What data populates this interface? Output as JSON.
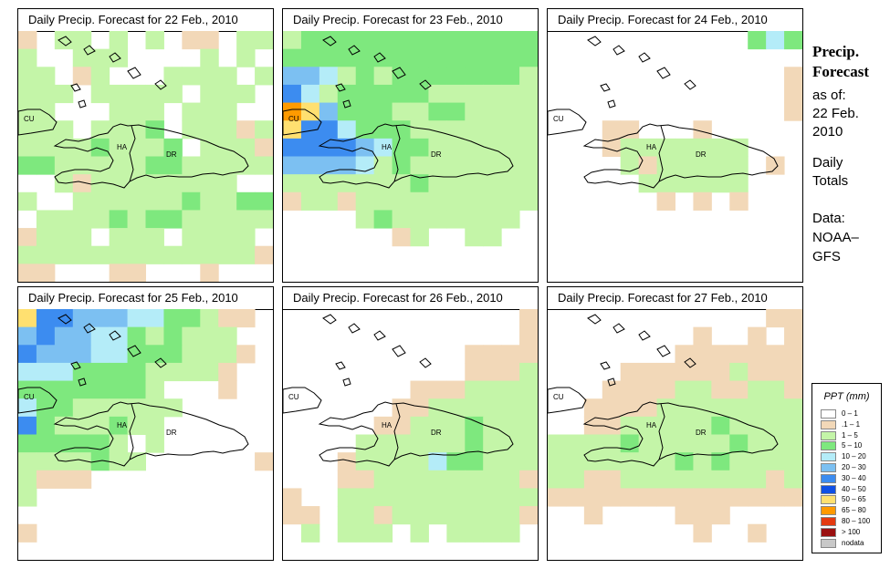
{
  "panels": [
    {
      "title": "Daily Precip. Forecast for  22 Feb., 2010"
    },
    {
      "title": "Daily Precip. Forecast for  23 Feb., 2010"
    },
    {
      "title": "Daily Precip. Forecast for  24 Feb., 2010"
    },
    {
      "title": "Daily Precip. Forecast for  25 Feb., 2010"
    },
    {
      "title": "Daily Precip. Forecast for  26 Feb., 2010"
    },
    {
      "title": "Daily Precip. Forecast for  27 Feb., 2010"
    }
  ],
  "country_labels": {
    "cuba": "CU",
    "haiti": "HA",
    "dominican_republic": "DR"
  },
  "sidebar": {
    "title_line1": "Precip.",
    "title_line2": "Forecast",
    "as_of": "as of:",
    "date_line1": "22 Feb.",
    "date_line2": "2010",
    "totals_line1": "Daily",
    "totals_line2": "Totals",
    "data_line1": "Data:",
    "data_line2": "NOAA–",
    "data_line3": "GFS"
  },
  "legend": {
    "title": "PPT (mm)",
    "items": [
      {
        "label": "0 – 1",
        "color": "#ffffff"
      },
      {
        "label": ".1 – 1",
        "color": "#f2d8b8"
      },
      {
        "label": "1 – 5",
        "color": "#c4f5a8"
      },
      {
        "label": "5 – 10",
        "color": "#7ee87e"
      },
      {
        "label": "10 – 20",
        "color": "#b4ecf8"
      },
      {
        "label": "20 – 30",
        "color": "#7cc0f2"
      },
      {
        "label": "30 – 40",
        "color": "#3c8cf0"
      },
      {
        "label": "40 – 50",
        "color": "#1050e6"
      },
      {
        "label": "50 – 65",
        "color": "#ffe070"
      },
      {
        "label": "65 – 80",
        "color": "#ff9a00"
      },
      {
        "label": "80 – 100",
        "color": "#e43a10"
      },
      {
        "label": "> 100",
        "color": "#9a1010"
      },
      {
        "label": "nodata",
        "color": "#c8c8c8"
      }
    ]
  },
  "chart_data": {
    "type": "heatmap",
    "description_units": "category index into legend.items (0 = 0-1 mm ... 7 = 40-50 mm, 8 = 50-65 mm)",
    "grid_cols": 14,
    "grid_rows": 14,
    "days": [
      {
        "date": "22 Feb., 2010",
        "grid": [
          "10220202011022",
          "20022200002020",
          "22012000222202",
          "22202222202220",
          "22000222022200",
          "22202223022212",
          "22223222302221",
          "33222223322222",
          "00212222222200",
          "20022222232233",
          "02222323322222",
          "12220222022220",
          "22222222222221",
          "11000110001000"
        ]
      },
      {
        "date": "23 Feb., 2010",
        "grid": [
          "23333333333333",
          "33333333333333",
          "55423233333332",
          "64233333222222",
          "98533322332222",
          "86643332222222",
          "66665433222222",
          "55554232222222",
          "22222223222222",
          "12212222222222",
          "00002322222220",
          "00000012002200",
          "00000000000000",
          "00000000000000"
        ]
      },
      {
        "date": "24 Feb., 2010",
        "grid": [
          "00000000000343",
          "00000000000000",
          "00000000000001",
          "00000000000001",
          "00000000000001",
          "00011000100000",
          "00012222222000",
          "00002122222010",
          "00000222222000",
          "00000010101000",
          "00000000000000",
          "00000000000000",
          "00000000000000",
          "00000000000000"
        ]
      },
      {
        "date": "25 Feb., 2010",
        "grid": [
          "86655544332110",
          "56554432322200",
          "65554433322210",
          "44433332222100",
          "33333332000100",
          "43322222200000",
          "63222322000000",
          "33333202000000",
          "22223220000001",
          "21110000000000",
          "20000000000000",
          "00000000000000",
          "10000000000000",
          "00000000000000"
        ]
      },
      {
        "date": "26 Feb., 2010",
        "grid": [
          "00000000000001",
          "00000000000001",
          "00000000001111",
          "00000000001112",
          "00000001112222",
          "00000011222222",
          "00000112223222",
          "00002222223222",
          "00012222433222",
          "00011222222221",
          "10022222222222",
          "11022122222221",
          "02022202022220",
          "00000000000000"
        ]
      },
      {
        "date": "27 Feb., 2010",
        "grid": [
          "00000000000011",
          "00000000100101",
          "00000001111111",
          "00001111112111",
          "00011112211221",
          "00111122222222",
          "00112222232222",
          "22223222223222",
          "22222223232222",
          "22112222222212",
          "11111111111111",
          "00100001110000",
          "00000000100100",
          "00000000000000"
        ]
      }
    ]
  }
}
